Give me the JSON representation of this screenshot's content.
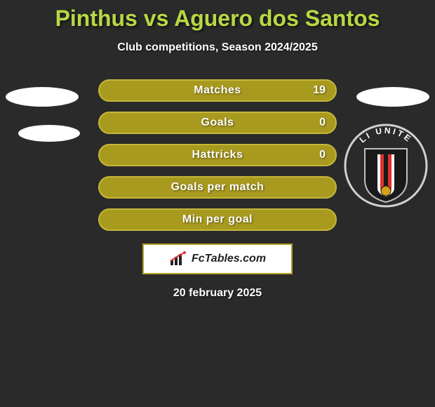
{
  "title": {
    "text": "Pinthus vs Aguero dos Santos",
    "color": "#b8d843",
    "fontsize": 32
  },
  "subtitle": "Club competitions, Season 2024/2025",
  "date": "20 february 2025",
  "colors": {
    "background": "#2a2a2a",
    "stat_fill": "#a89a1e",
    "stat_border": "#c5b73a",
    "logo_border": "#b0a020",
    "ellipse": "#ffffff"
  },
  "stats": [
    {
      "label": "Matches",
      "value": "19"
    },
    {
      "label": "Goals",
      "value": "0"
    },
    {
      "label": "Hattricks",
      "value": "0"
    },
    {
      "label": "Goals per match",
      "value": ""
    },
    {
      "label": "Min per goal",
      "value": ""
    }
  ],
  "logo": {
    "text": "FcTables.com"
  },
  "badge": {
    "name": "bali-united",
    "ring_color": "#2a2a2a",
    "ring_border": "#d0d0d0",
    "shield_bg": "#1a1a1a",
    "shield_border": "#c0c0c0",
    "accent": "#e03030",
    "text": "LI UNITE",
    "text_color": "#ffffff"
  }
}
